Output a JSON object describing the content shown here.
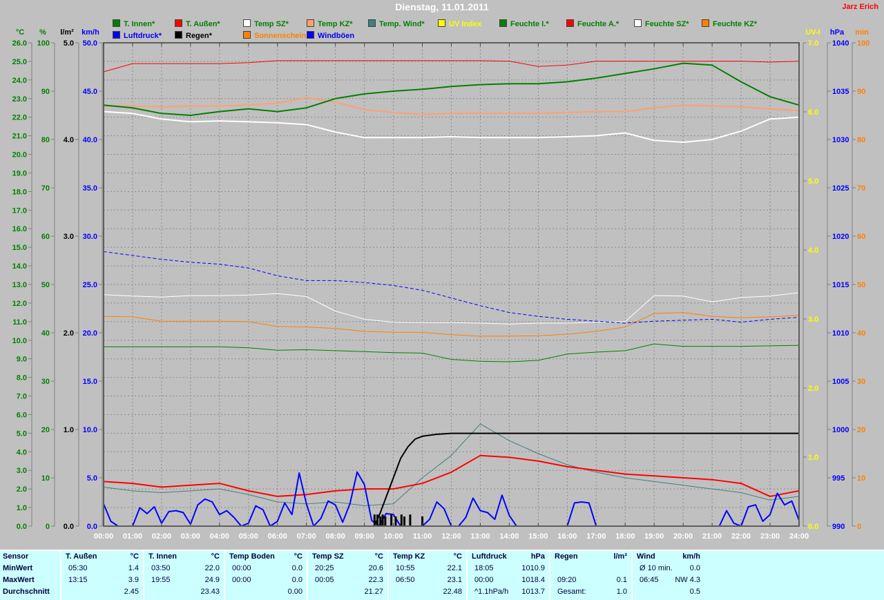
{
  "header": {
    "title": "Dienstag, 11.01.2011",
    "user": "Jarz Erich"
  },
  "legend": {
    "row1": [
      {
        "label": "T. Innen*",
        "swatch": "#008000",
        "text_color": "#008000"
      },
      {
        "label": "T. Außen*",
        "swatch": "#FF0000",
        "text_color": "#008000"
      },
      {
        "label": "Temp SZ*",
        "swatch": "#FFFFFF",
        "text_color": "#008000"
      },
      {
        "label": "Temp KZ*",
        "swatch": "#FFA070",
        "text_color": "#008000"
      },
      {
        "label": "Temp. Wind*",
        "swatch": "#3F8080",
        "text_color": "#008000"
      },
      {
        "label": "UV Index",
        "swatch": "#FFFF00",
        "text_color": "#FFFF00"
      },
      {
        "label": "Feuchte I.*",
        "swatch": "#008000",
        "text_color": "#008000"
      },
      {
        "label": "Feuchte A.*",
        "swatch": "#FF0000",
        "text_color": "#008000"
      },
      {
        "label": "Feuchte SZ*",
        "swatch": "#FFFFFF",
        "text_color": "#008000"
      },
      {
        "label": "Feuchte KZ*",
        "swatch": "#FF8000",
        "text_color": "#008000"
      }
    ],
    "row2": [
      {
        "label": "Luftdruck*",
        "swatch": "#0000FF",
        "text_color": "#0000FF"
      },
      {
        "label": "Regen*",
        "swatch": "#000000",
        "text_color": "#000000"
      },
      {
        "label": "Sonnenschein",
        "swatch": "#FF8000",
        "text_color": "#FF8000"
      },
      {
        "label": "Windböen",
        "swatch": "#0000FF",
        "text_color": "#0000FF"
      }
    ]
  },
  "chart_data": {
    "type": "line",
    "x_axis": {
      "label": "time",
      "range_hours": [
        0,
        24
      ],
      "ticks": [
        "00:00",
        "01:00",
        "02:00",
        "03:00",
        "04:00",
        "05:00",
        "06:00",
        "07:00",
        "08:00",
        "09:00",
        "10:00",
        "11:00",
        "12:00",
        "13:00",
        "14:00",
        "15:00",
        "16:00",
        "17:00",
        "18:00",
        "19:00",
        "20:00",
        "21:00",
        "22:00",
        "23:00",
        "24:00"
      ]
    },
    "axes": {
      "left": [
        {
          "id": "C",
          "name": "°C",
          "color": "#008000",
          "min": 0,
          "max": 26,
          "step": 1,
          "decimals": 1
        },
        {
          "id": "pct",
          "name": "%",
          "color": "#008000",
          "min": 0,
          "max": 100,
          "step": 10,
          "decimals": 0
        },
        {
          "id": "lm2",
          "name": "l/m²",
          "color": "#000000",
          "min": 0,
          "max": 5,
          "step": 1,
          "decimals": 1
        },
        {
          "id": "kmh",
          "name": "km/h",
          "color": "#0000FF",
          "min": 0,
          "max": 50,
          "step": 5,
          "decimals": 1
        }
      ],
      "right": [
        {
          "id": "uvi",
          "name": "UV-I",
          "color": "#FFFF00",
          "min": 0,
          "max": 7,
          "step": 1,
          "decimals": 1
        },
        {
          "id": "hpa",
          "name": "hPa",
          "color": "#0000FF",
          "min": 990,
          "max": 1040,
          "step": 5,
          "decimals": 0
        },
        {
          "id": "min",
          "name": "min",
          "color": "#FF8000",
          "min": 0,
          "max": 100,
          "step": 10,
          "decimals": 0
        }
      ]
    },
    "series": [
      {
        "name": "Sonnenschein",
        "axis": "min",
        "color": "#FF8000",
        "width": 1,
        "values": [
          0,
          0,
          0,
          0,
          0,
          0,
          0,
          0,
          0,
          0,
          0,
          0,
          0,
          0,
          0,
          0,
          0,
          0,
          0,
          0,
          0,
          0,
          0,
          0,
          0
        ]
      },
      {
        "name": "UV Index",
        "axis": "uvi",
        "color": "#FFFF00",
        "width": 2,
        "values": [
          0,
          0,
          0,
          0,
          0,
          0,
          0,
          0,
          0,
          0,
          0,
          0,
          0,
          0,
          0,
          0,
          0,
          0,
          0,
          0,
          0,
          0,
          0,
          0,
          0
        ]
      },
      {
        "name": "Feuchte SZ",
        "axis": "pct",
        "color": "#FFFFFF",
        "width": 1,
        "values": [
          47.9,
          47.6,
          47.4,
          47.7,
          47.7,
          47.8,
          48.1,
          47.5,
          44.5,
          42.8,
          42.2,
          42.1,
          42.1,
          42.0,
          41.8,
          42.0,
          42.0,
          42.2,
          42.3,
          47.7,
          47.6,
          46.4,
          47.3,
          47.6,
          48.3
        ]
      },
      {
        "name": "Feuchte KZ",
        "axis": "pct",
        "color": "#FF8000",
        "width": 1,
        "values": [
          43.4,
          43.3,
          42.4,
          42.4,
          42.4,
          42.3,
          41.3,
          41.2,
          40.9,
          40.3,
          40.1,
          40.1,
          39.6,
          39.3,
          39.3,
          39.4,
          39.7,
          40.3,
          41.2,
          44.0,
          44.2,
          43.4,
          43.1,
          43.3,
          43.6
        ]
      },
      {
        "name": "Feuchte I.",
        "axis": "pct",
        "color": "#008000",
        "width": 1,
        "values": [
          37.1,
          37.1,
          37.1,
          37.1,
          37.1,
          36.9,
          36.4,
          36.5,
          36.3,
          36.1,
          35.9,
          35.8,
          34.5,
          34.1,
          34.0,
          34.3,
          35.6,
          36.0,
          36.3,
          37.7,
          37.2,
          37.2,
          37.2,
          37.3,
          37.4
        ]
      },
      {
        "name": "Feuchte A.",
        "axis": "pct",
        "color": "#FF0000",
        "width": 1,
        "values": [
          94.0,
          95.7,
          95.7,
          95.7,
          95.7,
          95.9,
          96.3,
          96.3,
          96.3,
          96.3,
          96.3,
          96.3,
          96.3,
          96.3,
          96.2,
          95.1,
          95.4,
          96.2,
          96.2,
          96.2,
          96.2,
          96.2,
          96.2,
          96.0,
          96.2
        ]
      },
      {
        "name": "Luftdruck",
        "axis": "hpa",
        "color": "#0000FF",
        "width": 1,
        "dash": "5,3",
        "values": [
          1018.4,
          1018.0,
          1017.6,
          1017.3,
          1017.1,
          1016.7,
          1015.9,
          1015.4,
          1015.4,
          1015.2,
          1014.9,
          1014.4,
          1013.6,
          1012.8,
          1012.1,
          1011.7,
          1011.4,
          1011.2,
          1011.0,
          1011.2,
          1011.3,
          1011.4,
          1011.1,
          1011.4,
          1011.6
        ]
      },
      {
        "name": "Temp SZ",
        "axis": "C",
        "color": "#FFFFFF",
        "width": 2,
        "values": [
          22.3,
          22.2,
          21.9,
          21.75,
          21.8,
          21.75,
          21.7,
          21.6,
          21.2,
          20.9,
          20.9,
          20.9,
          20.95,
          20.9,
          20.9,
          20.9,
          20.95,
          21.0,
          21.15,
          20.75,
          20.65,
          20.8,
          21.25,
          21.9,
          22.0
        ]
      },
      {
        "name": "Temp KZ",
        "axis": "C",
        "color": "#FFA070",
        "width": 2,
        "values": [
          22.6,
          22.6,
          22.55,
          22.6,
          22.6,
          22.65,
          22.75,
          23.05,
          22.8,
          22.4,
          22.25,
          22.15,
          22.2,
          22.2,
          22.2,
          22.2,
          22.25,
          22.3,
          22.3,
          22.5,
          22.65,
          22.6,
          22.55,
          22.45,
          22.35
        ]
      },
      {
        "name": "T. Innen",
        "axis": "C",
        "color": "#008000",
        "width": 2,
        "values": [
          22.65,
          22.5,
          22.2,
          22.1,
          22.3,
          22.45,
          22.3,
          22.5,
          23.0,
          23.25,
          23.4,
          23.5,
          23.65,
          23.75,
          23.8,
          23.8,
          23.9,
          24.1,
          24.35,
          24.6,
          24.9,
          24.8,
          23.9,
          23.1,
          22.65
        ]
      },
      {
        "name": "Temp. Wind",
        "axis": "C",
        "color": "#3F8080",
        "width": 1,
        "values": [
          2.1,
          1.9,
          1.8,
          1.9,
          2.0,
          1.7,
          1.3,
          1.2,
          1.3,
          1.1,
          1.2,
          2.6,
          3.8,
          5.5,
          4.6,
          3.9,
          3.3,
          2.9,
          2.6,
          2.4,
          2.2,
          2.0,
          1.8,
          1.4,
          1.6
        ]
      },
      {
        "name": "T. Außen",
        "axis": "C",
        "color": "#FF0000",
        "width": 2,
        "values": [
          2.4,
          2.3,
          2.1,
          2.2,
          2.3,
          1.9,
          1.6,
          1.7,
          1.9,
          2.0,
          2.0,
          2.3,
          2.9,
          3.8,
          3.7,
          3.5,
          3.2,
          3.0,
          2.8,
          2.7,
          2.6,
          2.5,
          2.3,
          1.6,
          1.9
        ]
      },
      {
        "name": "Windböen",
        "axis": "kmh",
        "color": "#0000FF",
        "width": 2,
        "x_step": 0.25,
        "values": [
          2.3,
          0.5,
          0,
          0,
          0,
          1.9,
          1.3,
          2.0,
          0.3,
          1.5,
          1.6,
          1.4,
          0.2,
          2.2,
          2.8,
          2.5,
          1.2,
          1.6,
          0.9,
          0,
          0.3,
          2.1,
          1.7,
          0,
          0.5,
          2.4,
          1.2,
          5.5,
          2.3,
          0,
          0.8,
          2.6,
          2.2,
          0.4,
          2.3,
          5.6,
          4.3,
          0.6,
          0,
          1.3,
          1.2,
          0,
          0,
          0,
          0,
          0.7,
          2.5,
          1.8,
          0,
          0,
          0.9,
          2.9,
          1.6,
          1.4,
          0.7,
          3.2,
          1.1,
          0,
          0,
          0,
          0,
          0,
          0,
          0,
          0,
          2.4,
          2.5,
          2.4,
          0,
          0,
          0,
          0,
          0,
          0,
          0,
          0,
          0,
          0,
          0,
          0,
          0,
          0,
          0,
          0,
          0,
          0,
          1.6,
          0.3,
          0,
          2.0,
          2.2,
          0.5,
          1.2,
          3.4,
          2.2,
          2.6,
          0.6
        ]
      },
      {
        "name": "Regen (Summe)",
        "axis": "lm2",
        "color": "#000000",
        "width": 2,
        "x": [
          0,
          9.33,
          9.5,
          9.75,
          10,
          10.25,
          10.5,
          10.75,
          11,
          11.5,
          12,
          24
        ],
        "values": [
          0,
          0,
          0.1,
          0.3,
          0.5,
          0.7,
          0.82,
          0.9,
          0.93,
          0.95,
          0.96,
          0.96
        ]
      }
    ],
    "rain_bars": {
      "name": "Regen (Intervall)",
      "axis": "lm2",
      "color": "#000000",
      "bars": [
        {
          "t": 9.35,
          "v": 0.12
        },
        {
          "t": 9.45,
          "v": 0.12
        },
        {
          "t": 9.55,
          "v": 0.1
        },
        {
          "t": 9.63,
          "v": 0.12
        },
        {
          "t": 9.72,
          "v": 0.1
        },
        {
          "t": 9.93,
          "v": 0.12
        },
        {
          "t": 10.08,
          "v": 0.1
        },
        {
          "t": 10.28,
          "v": 0.12
        },
        {
          "t": 10.38,
          "v": 0.1
        },
        {
          "t": 10.58,
          "v": 0.12
        },
        {
          "t": 11.0,
          "v": 0.1
        }
      ]
    }
  },
  "table": {
    "row_labels": [
      "Sensor",
      "MinWert",
      "MaxWert",
      "Durchschnitt"
    ],
    "groups": [
      {
        "name": "T. Außen",
        "unit": "°C",
        "min_time": "05:30",
        "min_value": "1.4",
        "max_time": "13:15",
        "max_value": "3.9",
        "avg_label": "",
        "avg": "2.45"
      },
      {
        "name": "T. Innen",
        "unit": "°C",
        "min_time": "03:50",
        "min_value": "22.0",
        "max_time": "19:55",
        "max_value": "24.9",
        "avg_label": "",
        "avg": "23.43"
      },
      {
        "name": "Temp Boden",
        "unit": "°C",
        "min_time": "00:00",
        "min_value": "0.0",
        "max_time": "00:00",
        "max_value": "0.0",
        "avg_label": "",
        "avg": "0.00"
      },
      {
        "name": "Temp SZ",
        "unit": "°C",
        "min_time": "20:25",
        "min_value": "20.6",
        "max_time": "00:05",
        "max_value": "22.3",
        "avg_label": "",
        "avg": "21.27"
      },
      {
        "name": "Temp KZ",
        "unit": "°C",
        "min_time": "10:55",
        "min_value": "22.1",
        "max_time": "06:50",
        "max_value": "23.1",
        "avg_label": "",
        "avg": "22.48"
      },
      {
        "name": "Luftdruck",
        "unit": "hPa",
        "min_time": "18:05",
        "min_value": "1010.9",
        "max_time": "00:00",
        "max_value": "1018.4",
        "avg_label": "^1.1hPa/h",
        "avg": "1013.7"
      },
      {
        "name": "Regen",
        "unit": "l/m²",
        "min_time": "",
        "min_value": "",
        "max_time": "09:20",
        "max_value": "0.1",
        "avg_label": "Gesamt:",
        "avg": "1.0"
      },
      {
        "name": "Wind",
        "unit": "km/h",
        "min_time": "Ø 10 min.",
        "min_value": "0.0",
        "max_time": "06:45",
        "max_value": "NW 4.3",
        "avg_label": "",
        "avg": "0.5"
      }
    ]
  }
}
